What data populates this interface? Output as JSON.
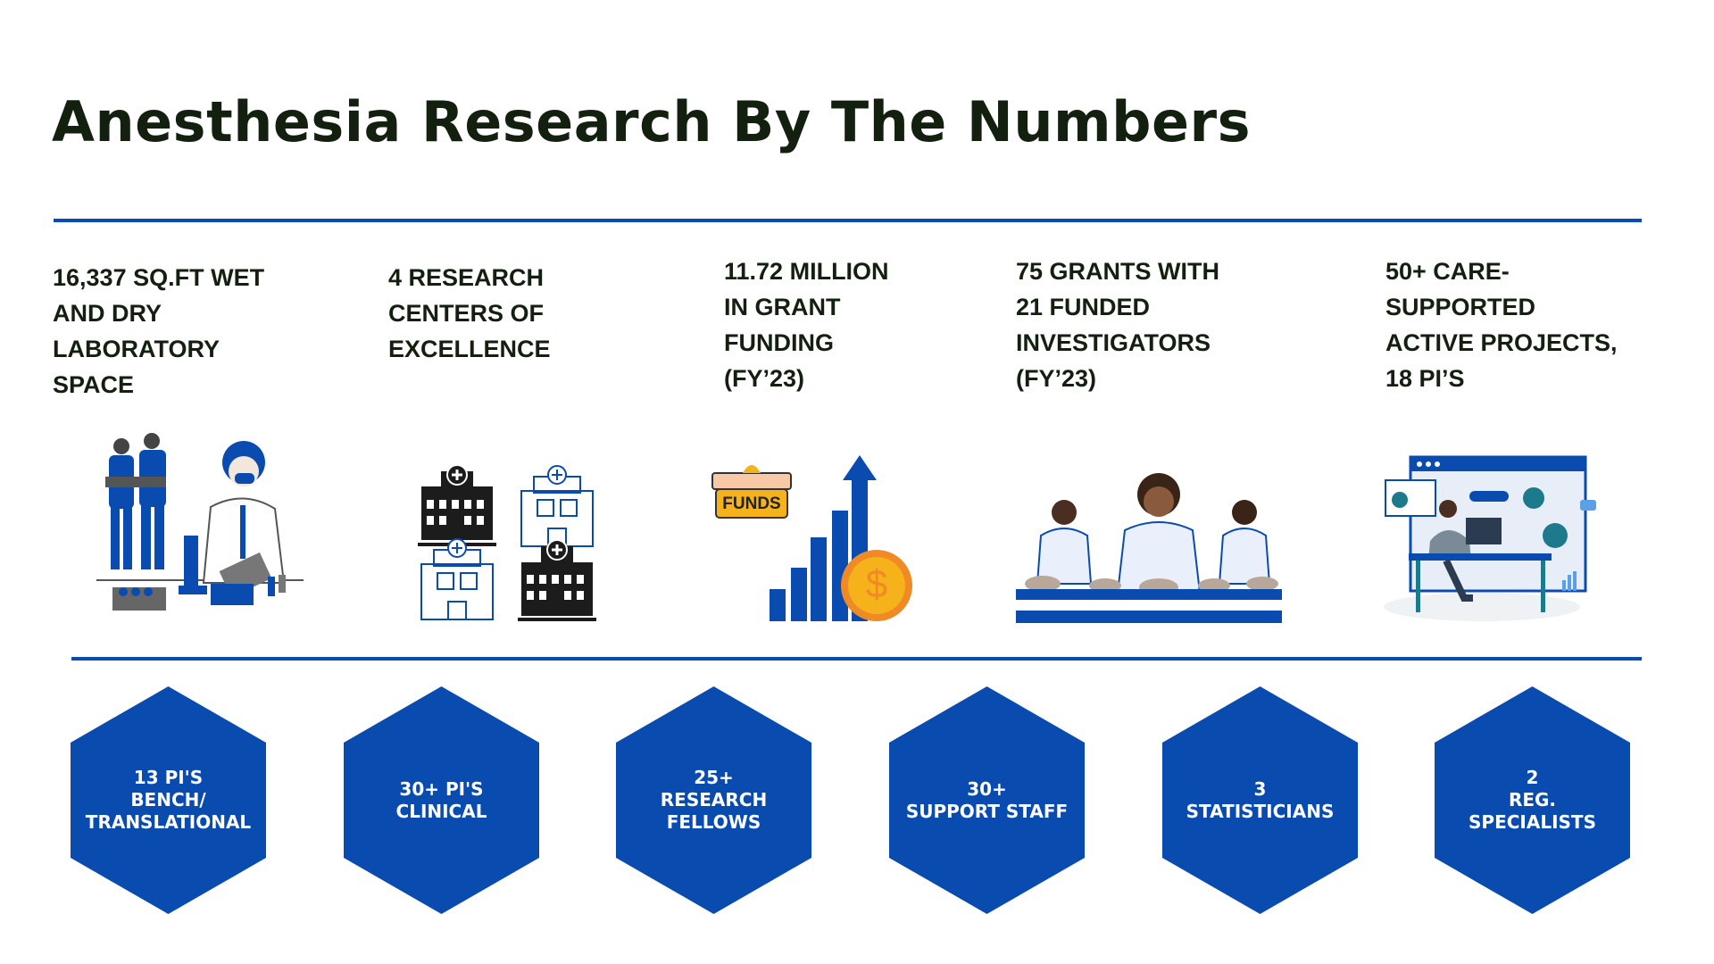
{
  "title": "Anesthesia Research By The Numbers",
  "colors": {
    "accent": "#0a4bb0",
    "text": "#13200f",
    "gold": "#f6b21b",
    "orange": "#f08a24"
  },
  "stats": [
    {
      "lines": [
        "16,337 SQ.FT WET",
        "AND DRY",
        "LABORATORY",
        "SPACE"
      ],
      "icon": "lab-scientists-illustration"
    },
    {
      "lines": [
        "4 RESEARCH",
        "CENTERS OF",
        "EXCELLENCE"
      ],
      "icon": "hospital-buildings-icon"
    },
    {
      "lines": [
        "11.72 MILLION",
        "IN GRANT",
        "FUNDING",
        "(FY’23)"
      ],
      "icon": "funding-growth-chart-icon",
      "funds_label": "FUNDS",
      "coin_symbol": "$"
    },
    {
      "lines": [
        "75 GRANTS WITH",
        "21 FUNDED",
        "INVESTIGATORS",
        "(FY’23)"
      ],
      "icon": "investigators-illustration"
    },
    {
      "lines": [
        "50+ CARE-",
        "SUPPORTED",
        "ACTIVE PROJECTS,",
        "18 PI’S"
      ],
      "icon": "project-dashboard-illustration"
    }
  ],
  "hexagons": [
    {
      "lines": [
        "13 PI'S",
        "BENCH/",
        "TRANSLATIONAL"
      ]
    },
    {
      "lines": [
        "30+ PI'S",
        "CLINICAL"
      ]
    },
    {
      "lines": [
        "25+",
        "RESEARCH",
        "FELLOWS"
      ]
    },
    {
      "lines": [
        "30+",
        "SUPPORT STAFF"
      ]
    },
    {
      "lines": [
        "3",
        "STATISTICIANS"
      ]
    },
    {
      "lines": [
        "2",
        "REG.",
        "SPECIALISTS"
      ]
    }
  ]
}
